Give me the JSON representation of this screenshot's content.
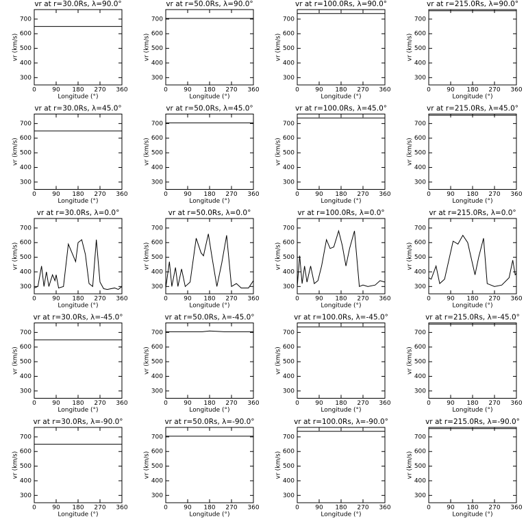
{
  "chart_data": [
    {
      "type": "line",
      "title": "vr at r=30.0Rs, λ=90.0°",
      "xlabel": "Longitude (°)",
      "ylabel": "vr (km/s)",
      "x": [
        0,
        360
      ],
      "series": [
        {
          "color": "#000000",
          "values": [
            650,
            650
          ]
        }
      ],
      "xlim": [
        0,
        360
      ],
      "ylim": [
        250,
        765
      ],
      "xticks": [
        0,
        90,
        180,
        270,
        360
      ],
      "yticks": [
        300,
        400,
        500,
        600,
        700
      ]
    },
    {
      "type": "line",
      "title": "vr at r=50.0Rs, λ=90.0°",
      "xlabel": "Longitude (°)",
      "ylabel": "vr (km/s)",
      "x": [
        0,
        360
      ],
      "series": [
        {
          "color": "#000000",
          "values": [
            705,
            705
          ]
        }
      ],
      "xlim": [
        0,
        360
      ],
      "ylim": [
        250,
        765
      ],
      "xticks": [
        0,
        90,
        180,
        270,
        360
      ],
      "yticks": [
        300,
        400,
        500,
        600,
        700
      ]
    },
    {
      "type": "line",
      "title": "vr at r=100.0Rs, λ=90.0°",
      "xlabel": "Longitude (°)",
      "ylabel": "vr (km/s)",
      "x": [
        0,
        360
      ],
      "series": [
        {
          "color": "#000000",
          "values": [
            738,
            738
          ]
        }
      ],
      "xlim": [
        0,
        360
      ],
      "ylim": [
        250,
        765
      ],
      "xticks": [
        0,
        90,
        180,
        270,
        360
      ],
      "yticks": [
        300,
        400,
        500,
        600,
        700
      ]
    },
    {
      "type": "line",
      "title": "vr at r=215.0Rs, λ=90.0°",
      "xlabel": "Longitude (°)",
      "ylabel": "vr (km/s)",
      "x": [
        0,
        360
      ],
      "series": [
        {
          "color": "#000000",
          "values": [
            757,
            757
          ]
        }
      ],
      "xlim": [
        0,
        360
      ],
      "ylim": [
        250,
        765
      ],
      "xticks": [
        0,
        90,
        180,
        270,
        360
      ],
      "yticks": [
        300,
        400,
        500,
        600,
        700
      ]
    },
    {
      "type": "line",
      "title": "vr at r=30.0Rs, λ=45.0°",
      "xlabel": "Longitude (°)",
      "ylabel": "vr (km/s)",
      "x": [
        0,
        360
      ],
      "series": [
        {
          "color": "#000000",
          "values": [
            650,
            650
          ]
        }
      ],
      "xlim": [
        0,
        360
      ],
      "ylim": [
        250,
        765
      ],
      "xticks": [
        0,
        90,
        180,
        270,
        360
      ],
      "yticks": [
        300,
        400,
        500,
        600,
        700
      ]
    },
    {
      "type": "line",
      "title": "vr at r=50.0Rs, λ=45.0°",
      "xlabel": "Longitude (°)",
      "ylabel": "vr (km/s)",
      "x": [
        0,
        360
      ],
      "series": [
        {
          "color": "#000000",
          "values": [
            705,
            705
          ]
        }
      ],
      "xlim": [
        0,
        360
      ],
      "ylim": [
        250,
        765
      ],
      "xticks": [
        0,
        90,
        180,
        270,
        360
      ],
      "yticks": [
        300,
        400,
        500,
        600,
        700
      ]
    },
    {
      "type": "line",
      "title": "vr at r=100.0Rs, λ=45.0°",
      "xlabel": "Longitude (°)",
      "ylabel": "vr (km/s)",
      "x": [
        0,
        360
      ],
      "series": [
        {
          "color": "#000000",
          "values": [
            738,
            738
          ]
        }
      ],
      "xlim": [
        0,
        360
      ],
      "ylim": [
        250,
        765
      ],
      "xticks": [
        0,
        90,
        180,
        270,
        360
      ],
      "yticks": [
        300,
        400,
        500,
        600,
        700
      ]
    },
    {
      "type": "line",
      "title": "vr at r=215.0Rs, λ=45.0°",
      "xlabel": "Longitude (°)",
      "ylabel": "vr (km/s)",
      "x": [
        0,
        360
      ],
      "series": [
        {
          "color": "#000000",
          "values": [
            757,
            757
          ]
        }
      ],
      "xlim": [
        0,
        360
      ],
      "ylim": [
        250,
        765
      ],
      "xticks": [
        0,
        90,
        180,
        270,
        360
      ],
      "yticks": [
        300,
        400,
        500,
        600,
        700
      ]
    },
    {
      "type": "line",
      "title": "vr at r=30.0Rs, λ=0.0°",
      "xlabel": "Longitude (°)",
      "ylabel": "vr (km/s)",
      "x": [
        0,
        15,
        30,
        40,
        50,
        60,
        75,
        85,
        90,
        100,
        120,
        140,
        160,
        170,
        180,
        195,
        210,
        225,
        240,
        255,
        270,
        285,
        300,
        330,
        345,
        360
      ],
      "series": [
        {
          "color": "#000000",
          "values": [
            290,
            300,
            440,
            300,
            400,
            300,
            380,
            340,
            380,
            290,
            300,
            590,
            510,
            470,
            600,
            620,
            520,
            320,
            300,
            620,
            330,
            285,
            280,
            290,
            280,
            300
          ]
        }
      ],
      "xlim": [
        0,
        360
      ],
      "ylim": [
        250,
        765
      ],
      "xticks": [
        0,
        90,
        180,
        270,
        360
      ],
      "yticks": [
        300,
        400,
        500,
        600,
        700
      ]
    },
    {
      "type": "line",
      "title": "vr at r=50.0Rs, λ=0.0°",
      "xlabel": "Longitude (°)",
      "ylabel": "vr (km/s)",
      "x": [
        0,
        15,
        25,
        40,
        50,
        65,
        80,
        100,
        125,
        145,
        155,
        175,
        190,
        210,
        230,
        250,
        270,
        290,
        310,
        340,
        360
      ],
      "series": [
        {
          "color": "#000000",
          "values": [
            290,
            470,
            300,
            430,
            300,
            420,
            300,
            330,
            630,
            530,
            510,
            660,
            500,
            300,
            460,
            650,
            300,
            320,
            290,
            290,
            340
          ]
        }
      ],
      "xlim": [
        0,
        360
      ],
      "ylim": [
        250,
        765
      ],
      "xticks": [
        0,
        90,
        180,
        270,
        360
      ],
      "yticks": [
        300,
        400,
        500,
        600,
        700
      ]
    },
    {
      "type": "line",
      "title": "vr at r=100.0Rs, λ=0.0°",
      "xlabel": "Longitude (°)",
      "ylabel": "vr (km/s)",
      "x": [
        0,
        10,
        20,
        30,
        40,
        55,
        70,
        85,
        100,
        120,
        135,
        150,
        170,
        185,
        200,
        215,
        235,
        255,
        270,
        290,
        320,
        340,
        360
      ],
      "series": [
        {
          "color": "#000000",
          "values": [
            300,
            510,
            320,
            440,
            330,
            440,
            320,
            340,
            440,
            620,
            560,
            570,
            680,
            580,
            440,
            560,
            680,
            300,
            310,
            300,
            310,
            340,
            330
          ]
        }
      ],
      "xlim": [
        0,
        360
      ],
      "ylim": [
        250,
        765
      ],
      "xticks": [
        0,
        90,
        180,
        270,
        360
      ],
      "yticks": [
        300,
        400,
        500,
        600,
        700
      ]
    },
    {
      "type": "line",
      "title": "vr at r=215.0Rs, λ=0.0°",
      "xlabel": "Longitude (°)",
      "ylabel": "vr (km/s)",
      "x": [
        0,
        10,
        30,
        45,
        65,
        100,
        120,
        140,
        160,
        190,
        205,
        225,
        240,
        255,
        270,
        300,
        330,
        345,
        355,
        360
      ],
      "series": [
        {
          "color": "#000000",
          "values": [
            360,
            350,
            440,
            320,
            350,
            610,
            590,
            650,
            600,
            380,
            500,
            630,
            320,
            310,
            300,
            310,
            360,
            480,
            380,
            390
          ]
        }
      ],
      "xlim": [
        0,
        360
      ],
      "ylim": [
        250,
        765
      ],
      "xticks": [
        0,
        90,
        180,
        270,
        360
      ],
      "yticks": [
        300,
        400,
        500,
        600,
        700
      ]
    },
    {
      "type": "line",
      "title": "vr at r=30.0Rs, λ=-45.0°",
      "xlabel": "Longitude (°)",
      "ylabel": "vr (km/s)",
      "x": [
        0,
        360
      ],
      "series": [
        {
          "color": "#000000",
          "values": [
            650,
            650
          ]
        }
      ],
      "xlim": [
        0,
        360
      ],
      "ylim": [
        250,
        765
      ],
      "xticks": [
        0,
        90,
        180,
        270,
        360
      ],
      "yticks": [
        300,
        400,
        500,
        600,
        700
      ]
    },
    {
      "type": "line",
      "title": "vr at r=50.0Rs, λ=-45.0°",
      "xlabel": "Longitude (°)",
      "ylabel": "vr (km/s)",
      "x": [
        0,
        150,
        180,
        200,
        240,
        360
      ],
      "series": [
        {
          "color": "#000000",
          "values": [
            705,
            705,
            710,
            708,
            705,
            705
          ]
        }
      ],
      "xlim": [
        0,
        360
      ],
      "ylim": [
        250,
        765
      ],
      "xticks": [
        0,
        90,
        180,
        270,
        360
      ],
      "yticks": [
        300,
        400,
        500,
        600,
        700
      ]
    },
    {
      "type": "line",
      "title": "vr at r=100.0Rs, λ=-45.0°",
      "xlabel": "Longitude (°)",
      "ylabel": "vr (km/s)",
      "x": [
        0,
        360
      ],
      "series": [
        {
          "color": "#000000",
          "values": [
            738,
            738
          ]
        }
      ],
      "xlim": [
        0,
        360
      ],
      "ylim": [
        250,
        765
      ],
      "xticks": [
        0,
        90,
        180,
        270,
        360
      ],
      "yticks": [
        300,
        400,
        500,
        600,
        700
      ]
    },
    {
      "type": "line",
      "title": "vr at r=215.0Rs, λ=-45.0°",
      "xlabel": "Longitude (°)",
      "ylabel": "vr (km/s)",
      "x": [
        0,
        360
      ],
      "series": [
        {
          "color": "#000000",
          "values": [
            757,
            757
          ]
        }
      ],
      "xlim": [
        0,
        360
      ],
      "ylim": [
        250,
        765
      ],
      "xticks": [
        0,
        90,
        180,
        270,
        360
      ],
      "yticks": [
        300,
        400,
        500,
        600,
        700
      ]
    },
    {
      "type": "line",
      "title": "vr at r=30.0Rs, λ=-90.0°",
      "xlabel": "Longitude (°)",
      "ylabel": "vr (km/s)",
      "x": [
        0,
        360
      ],
      "series": [
        {
          "color": "#000000",
          "values": [
            650,
            650
          ]
        }
      ],
      "xlim": [
        0,
        360
      ],
      "ylim": [
        250,
        765
      ],
      "xticks": [
        0,
        90,
        180,
        270,
        360
      ],
      "yticks": [
        300,
        400,
        500,
        600,
        700
      ]
    },
    {
      "type": "line",
      "title": "vr at r=50.0Rs, λ=-90.0°",
      "xlabel": "Longitude (°)",
      "ylabel": "vr (km/s)",
      "x": [
        0,
        360
      ],
      "series": [
        {
          "color": "#000000",
          "values": [
            705,
            705
          ]
        }
      ],
      "xlim": [
        0,
        360
      ],
      "ylim": [
        250,
        765
      ],
      "xticks": [
        0,
        90,
        180,
        270,
        360
      ],
      "yticks": [
        300,
        400,
        500,
        600,
        700
      ]
    },
    {
      "type": "line",
      "title": "vr at r=100.0Rs, λ=-90.0°",
      "xlabel": "Longitude (°)",
      "ylabel": "vr (km/s)",
      "x": [
        0,
        360
      ],
      "series": [
        {
          "color": "#000000",
          "values": [
            738,
            738
          ]
        }
      ],
      "xlim": [
        0,
        360
      ],
      "ylim": [
        250,
        765
      ],
      "xticks": [
        0,
        90,
        180,
        270,
        360
      ],
      "yticks": [
        300,
        400,
        500,
        600,
        700
      ]
    },
    {
      "type": "line",
      "title": "vr at r=215.0Rs, λ=-90.0°",
      "xlabel": "Longitude (°)",
      "ylabel": "vr (km/s)",
      "x": [
        0,
        360
      ],
      "series": [
        {
          "color": "#000000",
          "values": [
            757,
            757
          ]
        }
      ],
      "xlim": [
        0,
        360
      ],
      "ylim": [
        250,
        765
      ],
      "xticks": [
        0,
        90,
        180,
        270,
        360
      ],
      "yticks": [
        300,
        400,
        500,
        600,
        700
      ]
    }
  ]
}
